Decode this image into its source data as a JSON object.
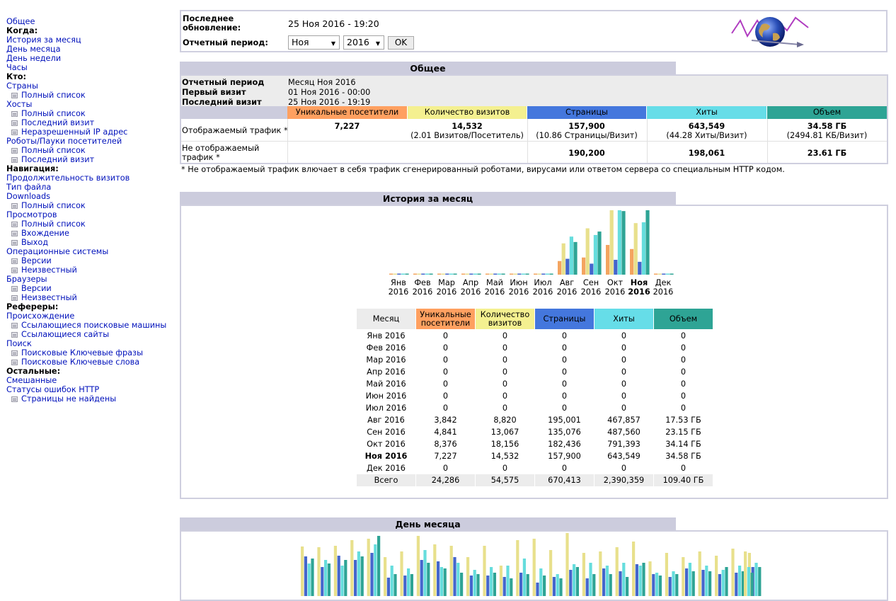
{
  "menu": {
    "general": "Общее",
    "when": "Когда:",
    "monthly_history": "История за месяц",
    "day_of_month": "День месяца",
    "day_of_week": "День недели",
    "hours": "Часы",
    "who": "Кто:",
    "countries": "Страны",
    "countries_full": "Полный список",
    "hosts": "Хосты",
    "hosts_full": "Полный список",
    "hosts_last_visit": "Последний визит",
    "hosts_unresolved": "Неразрешенный IP адрес",
    "robots": "Роботы/Пауки посетителей",
    "robots_full": "Полный список",
    "robots_last_visit": "Последний визит",
    "navigation": "Навигация:",
    "visit_duration": "Продолжительность визитов",
    "file_type": "Тип файла",
    "downloads": "Downloads",
    "downloads_full": "Полный список",
    "views": "Просмотров",
    "views_full": "Полный список",
    "views_entry": "Вхождение",
    "views_exit": "Выход",
    "os": "Операционные системы",
    "os_versions": "Версии",
    "os_unknown": "Неизвестный",
    "browsers": "Браузеры",
    "browsers_versions": "Версии",
    "browsers_unknown": "Неизвестный",
    "referers": "Рефереры:",
    "origin": "Происхождение",
    "ref_search_engines": "Ссылающиеся поисковые машины",
    "ref_sites": "Ссылающиеся сайты",
    "search": "Поиск",
    "search_phrases": "Поисковые Ключевые фразы",
    "search_words": "Поисковые Ключевые слова",
    "others": "Остальные:",
    "misc": "Смешанные",
    "http_errors": "Статусы ошибок HTTP",
    "pages_not_found": "Страницы не найдены"
  },
  "header": {
    "last_update_label": "Последнее обновление:",
    "last_update_value": "25 Ноя 2016 - 19:20",
    "period_label": "Отчетный период:",
    "month_select": "Ноя",
    "year_select": "2016",
    "ok_button": "OK"
  },
  "summary": {
    "title": "Общее",
    "report_period_label": "Отчетный период",
    "report_period_value": "Месяц Ноя 2016",
    "first_visit_label": "Первый визит",
    "first_visit_value": "01 Ноя 2016 - 00:00",
    "last_visit_label": "Последний визит",
    "last_visit_value": "25 Ноя 2016 - 19:19",
    "col_unique": "Уникальные посетители",
    "col_visits": "Количество визитов",
    "col_pages": "Страницы",
    "col_hits": "Хиты",
    "col_volume": "Объем",
    "viewed_label": "Отображаемый трафик *",
    "viewed_unique": "7,227",
    "viewed_visits": "14,532",
    "viewed_visits_sub": "(2.01 Визитов/Посетитель)",
    "viewed_pages": "157,900",
    "viewed_pages_sub": "(10.86 Страницы/Визит)",
    "viewed_hits": "643,549",
    "viewed_hits_sub": "(44.28 Хиты/Визит)",
    "viewed_volume": "34.58 ГБ",
    "viewed_volume_sub": "(2494.81 КБ/Визит)",
    "notviewed_label": "Не отображаемый трафик *",
    "notviewed_pages": "190,200",
    "notviewed_hits": "198,061",
    "notviewed_volume": "23.61 ГБ",
    "footnote": "* Не отображаемый трафик влючает в себя трафик сгенерированный роботами, вирусами или ответом сервера со специальным HTTP кодом."
  },
  "monthly": {
    "title": "История за месяц",
    "col_month": "Месяц",
    "col_unique": "Уникальные посетители",
    "col_visits": "Количество визитов",
    "col_pages": "Страницы",
    "col_hits": "Хиты",
    "col_volume": "Объем",
    "total_label": "Всего",
    "total": [
      "24,286",
      "54,575",
      "670,413",
      "2,390,359",
      "109.40 ГБ"
    ],
    "rows": [
      [
        "Янв 2016",
        "0",
        "0",
        "0",
        "0",
        "0"
      ],
      [
        "Фев 2016",
        "0",
        "0",
        "0",
        "0",
        "0"
      ],
      [
        "Мар 2016",
        "0",
        "0",
        "0",
        "0",
        "0"
      ],
      [
        "Апр 2016",
        "0",
        "0",
        "0",
        "0",
        "0"
      ],
      [
        "Май 2016",
        "0",
        "0",
        "0",
        "0",
        "0"
      ],
      [
        "Июн 2016",
        "0",
        "0",
        "0",
        "0",
        "0"
      ],
      [
        "Июл 2016",
        "0",
        "0",
        "0",
        "0",
        "0"
      ],
      [
        "Авг 2016",
        "3,842",
        "8,820",
        "195,001",
        "467,857",
        "17.53 ГБ"
      ],
      [
        "Сен 2016",
        "4,841",
        "13,067",
        "135,076",
        "487,560",
        "23.15 ГБ"
      ],
      [
        "Окт 2016",
        "8,376",
        "18,156",
        "182,436",
        "791,393",
        "34.14 ГБ"
      ],
      [
        "Ноя 2016",
        "7,227",
        "14,532",
        "157,900",
        "643,549",
        "34.58 ГБ"
      ],
      [
        "Дек 2016",
        "0",
        "0",
        "0",
        "0",
        "0"
      ]
    ],
    "chart_months": [
      "Янв",
      "Фев",
      "Мар",
      "Апр",
      "Май",
      "Июн",
      "Июл",
      "Авг",
      "Сен",
      "Окт",
      "Ноя",
      "Дек"
    ],
    "chart_year": "2016"
  },
  "daily": {
    "title": "День месяца"
  },
  "chart_data": {
    "type": "bar",
    "categories": [
      "Янв 2016",
      "Фев 2016",
      "Мар 2016",
      "Апр 2016",
      "Май 2016",
      "Июн 2016",
      "Июл 2016",
      "Авг 2016",
      "Сен 2016",
      "Окт 2016",
      "Ноя 2016",
      "Дек 2016"
    ],
    "series": [
      {
        "name": "Уникальные посетители",
        "values": [
          0,
          0,
          0,
          0,
          0,
          0,
          0,
          3842,
          4841,
          8376,
          7227,
          0
        ],
        "color": "#f4a460"
      },
      {
        "name": "Количество визитов",
        "values": [
          0,
          0,
          0,
          0,
          0,
          0,
          0,
          8820,
          13067,
          18156,
          14532,
          0
        ],
        "color": "#e8e08c"
      },
      {
        "name": "Страницы",
        "values": [
          0,
          0,
          0,
          0,
          0,
          0,
          0,
          195001,
          135076,
          182436,
          157900,
          0
        ],
        "color": "#4477dd"
      },
      {
        "name": "Хиты",
        "values": [
          0,
          0,
          0,
          0,
          0,
          0,
          0,
          467857,
          487560,
          791393,
          643549,
          0
        ],
        "color": "#66dddd"
      },
      {
        "name": "Объем",
        "values": [
          0,
          0,
          0,
          0,
          0,
          0,
          0,
          17.53,
          23.15,
          34.14,
          34.58,
          0
        ],
        "color": "#2ea495"
      }
    ]
  },
  "colors": {
    "unique": "#ffa060",
    "visits": "#f4f090",
    "pages": "#4477dd",
    "hits": "#66dde8",
    "volume": "#2ea495",
    "title_bg": "#ccccdd",
    "link": "#0011bb"
  }
}
